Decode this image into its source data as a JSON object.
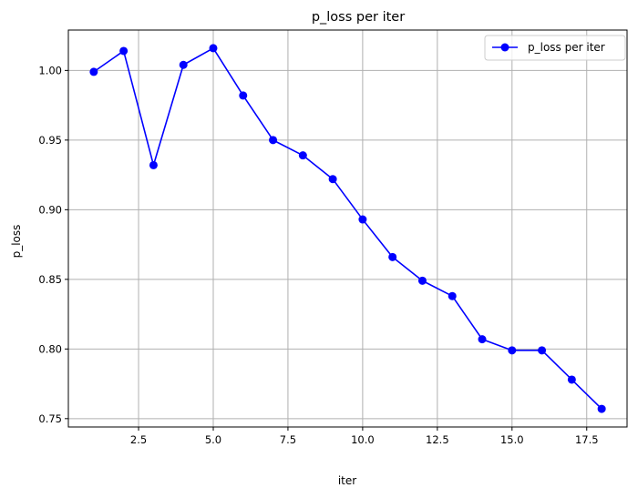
{
  "chart_data": {
    "type": "line",
    "title": "p_loss per iter",
    "xlabel": "iter",
    "ylabel": "p_loss",
    "xlim": [
      0.15,
      18.85
    ],
    "ylim": [
      0.744,
      1.029
    ],
    "x_ticks": [
      2.5,
      5.0,
      7.5,
      10.0,
      12.5,
      15.0,
      17.5
    ],
    "x_tick_labels": [
      "2.5",
      "5.0",
      "7.5",
      "10.0",
      "12.5",
      "15.0",
      "17.5"
    ],
    "y_ticks": [
      0.75,
      0.8,
      0.85,
      0.9,
      0.95,
      1.0
    ],
    "y_tick_labels": [
      "0.75",
      "0.80",
      "0.85",
      "0.90",
      "0.95",
      "1.00"
    ],
    "grid": true,
    "legend_position": "top-right",
    "series": [
      {
        "name": "p_loss per iter",
        "color": "#0000ff",
        "marker": "circle",
        "x": [
          1,
          2,
          3,
          4,
          5,
          6,
          7,
          8,
          9,
          10,
          11,
          12,
          13,
          14,
          15,
          16,
          17,
          18
        ],
        "y": [
          0.999,
          1.014,
          0.932,
          1.004,
          1.016,
          0.982,
          0.95,
          0.939,
          0.922,
          0.893,
          0.866,
          0.849,
          0.838,
          0.807,
          0.799,
          0.799,
          0.778,
          0.757
        ]
      }
    ]
  }
}
